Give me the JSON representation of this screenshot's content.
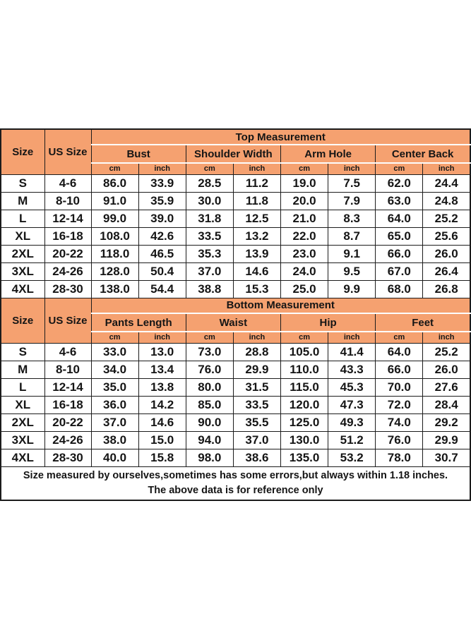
{
  "colors": {
    "header_bg": "#F5A170",
    "border": "#1c1c1c",
    "text": "#151515",
    "header_divider": "#fdfdfd"
  },
  "labels": {
    "size": "Size",
    "us_size": "US Size",
    "cm": "cm",
    "inch": "inch"
  },
  "chart_data": [
    {
      "type": "table",
      "title": "Top Measurement",
      "row_header_labels": [
        "Size",
        "US Size"
      ],
      "column_groups": [
        "Bust",
        "Shoulder Width",
        "Arm Hole",
        "Center Back"
      ],
      "units_per_group": [
        "cm",
        "inch"
      ],
      "rows": [
        {
          "size": "S",
          "us_size": "4-6",
          "values": [
            "86.0",
            "33.9",
            "28.5",
            "11.2",
            "19.0",
            "7.5",
            "62.0",
            "24.4"
          ]
        },
        {
          "size": "M",
          "us_size": "8-10",
          "values": [
            "91.0",
            "35.9",
            "30.0",
            "11.8",
            "20.0",
            "7.9",
            "63.0",
            "24.8"
          ]
        },
        {
          "size": "L",
          "us_size": "12-14",
          "values": [
            "99.0",
            "39.0",
            "31.8",
            "12.5",
            "21.0",
            "8.3",
            "64.0",
            "25.2"
          ]
        },
        {
          "size": "XL",
          "us_size": "16-18",
          "values": [
            "108.0",
            "42.6",
            "33.5",
            "13.2",
            "22.0",
            "8.7",
            "65.0",
            "25.6"
          ]
        },
        {
          "size": "2XL",
          "us_size": "20-22",
          "values": [
            "118.0",
            "46.5",
            "35.3",
            "13.9",
            "23.0",
            "9.1",
            "66.0",
            "26.0"
          ]
        },
        {
          "size": "3XL",
          "us_size": "24-26",
          "values": [
            "128.0",
            "50.4",
            "37.0",
            "14.6",
            "24.0",
            "9.5",
            "67.0",
            "26.4"
          ]
        },
        {
          "size": "4XL",
          "us_size": "28-30",
          "values": [
            "138.0",
            "54.4",
            "38.8",
            "15.3",
            "25.0",
            "9.9",
            "68.0",
            "26.8"
          ]
        }
      ]
    },
    {
      "type": "table",
      "title": "Bottom Measurement",
      "row_header_labels": [
        "Size",
        "US Size"
      ],
      "column_groups": [
        "Pants Length",
        "Waist",
        "Hip",
        "Feet"
      ],
      "units_per_group": [
        "cm",
        "inch"
      ],
      "rows": [
        {
          "size": "S",
          "us_size": "4-6",
          "values": [
            "33.0",
            "13.0",
            "73.0",
            "28.8",
            "105.0",
            "41.4",
            "64.0",
            "25.2"
          ]
        },
        {
          "size": "M",
          "us_size": "8-10",
          "values": [
            "34.0",
            "13.4",
            "76.0",
            "29.9",
            "110.0",
            "43.3",
            "66.0",
            "26.0"
          ]
        },
        {
          "size": "L",
          "us_size": "12-14",
          "values": [
            "35.0",
            "13.8",
            "80.0",
            "31.5",
            "115.0",
            "45.3",
            "70.0",
            "27.6"
          ]
        },
        {
          "size": "XL",
          "us_size": "16-18",
          "values": [
            "36.0",
            "14.2",
            "85.0",
            "33.5",
            "120.0",
            "47.3",
            "72.0",
            "28.4"
          ]
        },
        {
          "size": "2XL",
          "us_size": "20-22",
          "values": [
            "37.0",
            "14.6",
            "90.0",
            "35.5",
            "125.0",
            "49.3",
            "74.0",
            "29.2"
          ]
        },
        {
          "size": "3XL",
          "us_size": "24-26",
          "values": [
            "38.0",
            "15.0",
            "94.0",
            "37.0",
            "130.0",
            "51.2",
            "76.0",
            "29.9"
          ]
        },
        {
          "size": "4XL",
          "us_size": "28-30",
          "values": [
            "40.0",
            "15.8",
            "98.0",
            "38.6",
            "135.0",
            "53.2",
            "78.0",
            "30.7"
          ]
        }
      ]
    }
  ],
  "footer": {
    "line1": "Size measured by ourselves,sometimes has some errors,but always within 1.18 inches.",
    "line2": "The above data is for reference only"
  }
}
